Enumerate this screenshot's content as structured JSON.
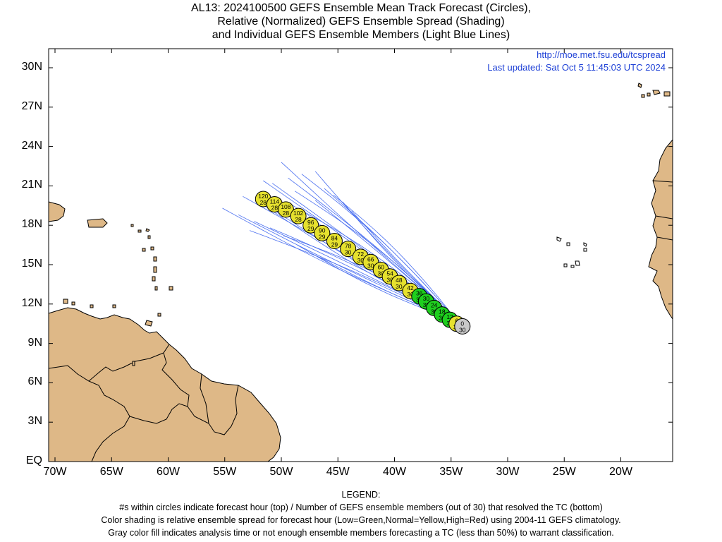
{
  "title": {
    "line1": "AL13: 2024100500 GEFS Ensemble Mean Track Forecast (Circles),",
    "line2": "Relative (Normalized) GEFS Ensemble Spread (Shading)",
    "line3": "and Individual GEFS Ensemble Members (Light Blue Lines)"
  },
  "notes": {
    "url": "http://moe.met.fsu.edu/tcspread",
    "updated": "Last updated: Sat Oct 5 11:45:03 UTC 2024"
  },
  "axes": {
    "x_range_lon": [
      -70.5,
      -15
    ],
    "y_range_lat": [
      0,
      31.5
    ],
    "lat_labels": [
      "EQ",
      "3N",
      "6N",
      "9N",
      "12N",
      "15N",
      "18N",
      "21N",
      "24N",
      "27N",
      "30N"
    ],
    "lat_values": [
      0,
      3,
      6,
      9,
      12,
      15,
      18,
      21,
      24,
      27,
      30
    ],
    "lon_labels": [
      "70W",
      "65W",
      "60W",
      "55W",
      "50W",
      "45W",
      "40W",
      "35W",
      "30W",
      "25W",
      "20W"
    ],
    "lon_values": [
      -70,
      -65,
      -60,
      -55,
      -50,
      -45,
      -40,
      -35,
      -30,
      -25,
      -20
    ]
  },
  "colors": {
    "land": "#deb887",
    "ocean": "#ffffff",
    "member_line": "#4a6ff0",
    "low_spread": "#1ecf1e",
    "normal_spread": "#e6e12e",
    "analysis": "#c8c8c8",
    "note_text": "#1c3fd6"
  },
  "mean_track": [
    {
      "hour": "0",
      "members": "30",
      "lat": 10.3,
      "lon": -34.0,
      "spread": "analysis"
    },
    {
      "hour": "6",
      "members": "30",
      "lat": 10.5,
      "lon": -34.5,
      "spread": "normal"
    },
    {
      "hour": "12",
      "members": "30",
      "lat": 10.8,
      "lon": -35.1,
      "spread": "low"
    },
    {
      "hour": "18",
      "members": "30",
      "lat": 11.2,
      "lon": -35.8,
      "spread": "low"
    },
    {
      "hour": "24",
      "members": "30",
      "lat": 11.7,
      "lon": -36.5,
      "spread": "low"
    },
    {
      "hour": "30",
      "members": "30",
      "lat": 12.2,
      "lon": -37.2,
      "spread": "low"
    },
    {
      "hour": "36",
      "members": "30",
      "lat": 12.6,
      "lon": -37.8,
      "spread": "low"
    },
    {
      "hour": "42",
      "members": "30",
      "lat": 13.0,
      "lon": -38.6,
      "spread": "normal"
    },
    {
      "hour": "48",
      "members": "30",
      "lat": 13.6,
      "lon": -39.6,
      "spread": "normal"
    },
    {
      "hour": "54",
      "members": "30",
      "lat": 14.1,
      "lon": -40.4,
      "spread": "normal"
    },
    {
      "hour": "60",
      "members": "30",
      "lat": 14.6,
      "lon": -41.2,
      "spread": "normal"
    },
    {
      "hour": "66",
      "members": "30",
      "lat": 15.2,
      "lon": -42.1,
      "spread": "normal"
    },
    {
      "hour": "72",
      "members": "30",
      "lat": 15.6,
      "lon": -43.0,
      "spread": "normal"
    },
    {
      "hour": "78",
      "members": "30",
      "lat": 16.2,
      "lon": -44.1,
      "spread": "normal"
    },
    {
      "hour": "84",
      "members": "29",
      "lat": 16.8,
      "lon": -45.3,
      "spread": "normal"
    },
    {
      "hour": "90",
      "members": "29",
      "lat": 17.4,
      "lon": -46.4,
      "spread": "normal"
    },
    {
      "hour": "96",
      "members": "29",
      "lat": 18.0,
      "lon": -47.4,
      "spread": "normal"
    },
    {
      "hour": "102",
      "members": "28",
      "lat": 18.7,
      "lon": -48.5,
      "spread": "normal"
    },
    {
      "hour": "108",
      "members": "28",
      "lat": 19.2,
      "lon": -49.6,
      "spread": "normal"
    },
    {
      "hour": "114",
      "members": "28",
      "lat": 19.6,
      "lon": -50.6,
      "spread": "normal"
    },
    {
      "hour": "120",
      "members": "28",
      "lat": 20.0,
      "lon": -51.6,
      "spread": "normal"
    }
  ],
  "legend": {
    "heading": "LEGEND:",
    "line1": "#s within circles indicate forecast hour (top) / Number of GEFS ensemble members (out of 30) that resolved the TC (bottom)",
    "line2": "Color shading is relative ensemble spread for forecast hour (Low=Green,Normal=Yellow,High=Red) using 2004-11 GEFS climatology.",
    "line3": "Gray color fill indicates analysis time or not enough ensemble members forecasting a TC (less than 50%) to warrant classification."
  }
}
